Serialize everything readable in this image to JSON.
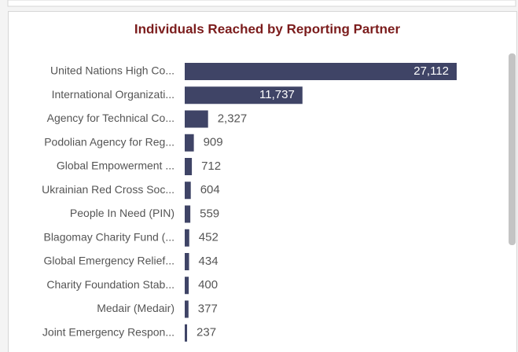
{
  "chart_data": {
    "type": "bar",
    "orientation": "horizontal",
    "title": "Individuals Reached by Reporting Partner",
    "categories": [
      "United Nations High Co...",
      "International Organizati...",
      "Agency for Technical Co...",
      "Podolian Agency for Reg...",
      "Global Empowerment ...",
      "Ukrainian Red Cross Soc...",
      "People In Need (PIN)",
      "Blagomay Charity Fund (...",
      "Global Emergency Relief...",
      "Charity Foundation Stab...",
      "Medair (Medair)",
      "Joint Emergency Respon..."
    ],
    "values": [
      27112,
      11737,
      2327,
      909,
      712,
      604,
      559,
      452,
      434,
      400,
      377,
      237
    ],
    "value_labels": [
      "27,112",
      "11,737",
      "2,327",
      "909",
      "712",
      "604",
      "559",
      "452",
      "434",
      "400",
      "377",
      "237"
    ],
    "color": "#3f4466"
  }
}
